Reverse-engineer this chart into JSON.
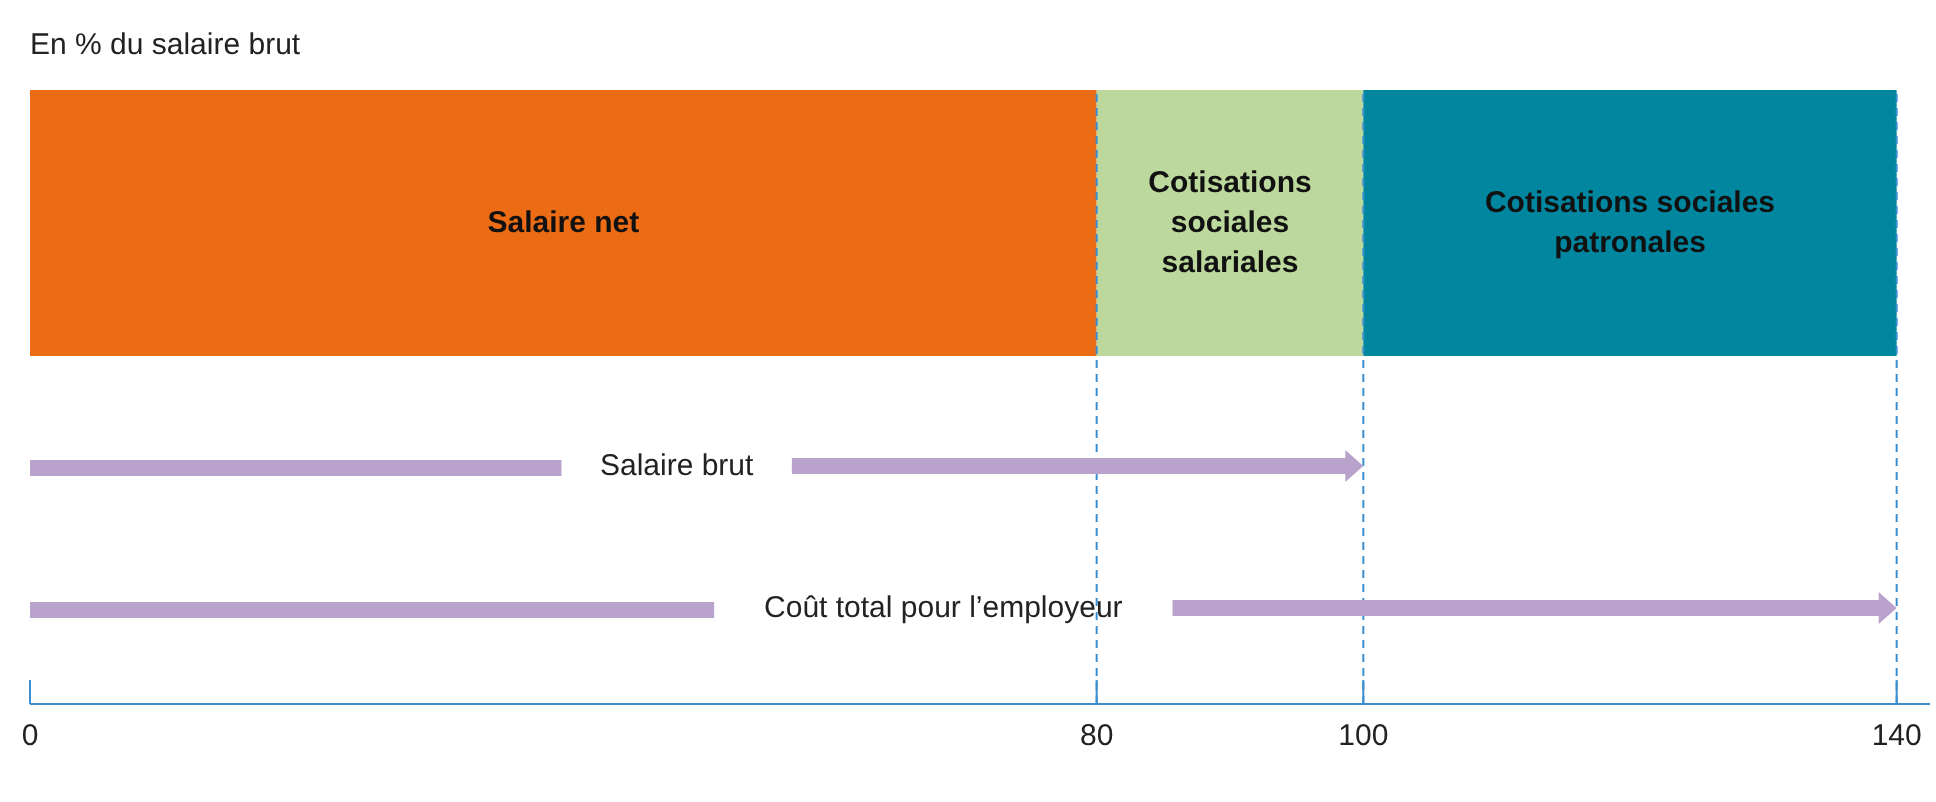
{
  "chart_data": {
    "type": "bar",
    "title": "En % du salaire brut",
    "orientation": "horizontal",
    "stacked": true,
    "categories": [
      null
    ],
    "series": [
      {
        "name": "Salaire net",
        "color": "#ec6c15",
        "values": [
          80
        ]
      },
      {
        "name": "Cotisations sociales salariales",
        "color": "#bdd89c",
        "values": [
          20
        ]
      },
      {
        "name": "Cotisations sociales patronales",
        "color": "#00879f",
        "values": [
          40
        ]
      }
    ],
    "xlim": [
      0,
      142.5
    ],
    "xticks": [
      0,
      80,
      100,
      140
    ],
    "ref_lines": [
      {
        "axis": "x",
        "value": 80,
        "color": "#3a8fd0",
        "line_style": "dashed"
      },
      {
        "axis": "x",
        "value": 100,
        "color": "#3a8fd0",
        "line_style": "dashed"
      },
      {
        "axis": "x",
        "value": 140,
        "color": "#3a8fd0",
        "line_style": "dashed"
      }
    ],
    "annotations": [
      "Salaire brut",
      "Coût total pour l’employeur"
    ],
    "legend": false,
    "grid": false
  }
}
